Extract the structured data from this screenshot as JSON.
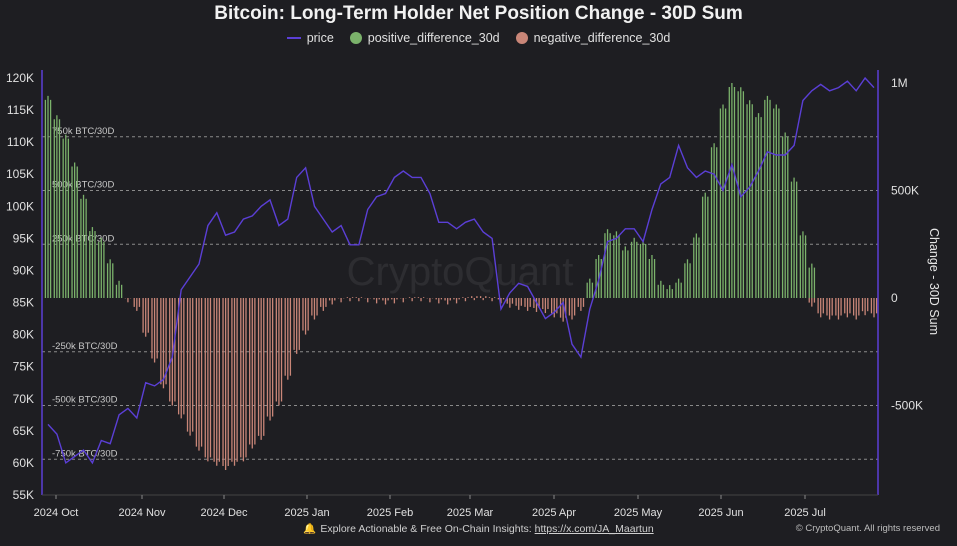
{
  "title": "Bitcoin: Long-Term Holder Net Position Change - 30D Sum",
  "legend": [
    {
      "label": "price",
      "color": "#5b3fd6",
      "kind": "line"
    },
    {
      "label": "positive_difference_30d",
      "color": "#7bb26b",
      "kind": "dot"
    },
    {
      "label": "negative_difference_30d",
      "color": "#c98678",
      "kind": "dot"
    }
  ],
  "watermark": "CryptoQuant",
  "footer": {
    "text": "Explore Actionable & Free On-Chain Insights:",
    "link": "https://x.com/JA_Maartun",
    "credit": "© CryptoQuant. All rights reserved"
  },
  "chart_data": {
    "type": "bar",
    "title": "Bitcoin: Long-Term Holder Net Position Change - 30D Sum",
    "xlabel": "",
    "ylabel": "",
    "y2label": "Change - 30D Sum",
    "x_ticks": [
      "2024 Oct",
      "2024 Nov",
      "2024 Dec",
      "2025 Jan",
      "2025 Feb",
      "2025 Mar",
      "2025 Apr",
      "2025 May",
      "2025 Jun",
      "2025 Jul"
    ],
    "y_left_ticks": [
      "120K",
      "115K",
      "110K",
      "105K",
      "100K",
      "95K",
      "90K",
      "85K",
      "80K",
      "75K",
      "70K",
      "65K",
      "60K",
      "55K"
    ],
    "y_right_ticks": [
      "1M",
      "500K",
      "0",
      "-500K"
    ],
    "ylim_price": [
      55000,
      121000
    ],
    "ylim_change": [
      -1000000,
      1000000
    ],
    "reference_lines": [
      {
        "label": "750k BTC/30D",
        "value": 750000
      },
      {
        "label": "500k BTC/30D",
        "value": 500000
      },
      {
        "label": "250k BTC/30D",
        "value": 250000
      },
      {
        "label": "-250k BTC/30D",
        "value": -250000
      },
      {
        "label": "-500k BTC/30D",
        "value": -500000
      },
      {
        "label": "-750k BTC/30D",
        "value": -750000
      }
    ],
    "series": [
      {
        "name": "price",
        "type": "line",
        "values": [
          66000,
          64500,
          60000,
          61000,
          62000,
          60000,
          63500,
          63000,
          67500,
          68500,
          67000,
          72500,
          72000,
          73000,
          76500,
          87000,
          89000,
          91000,
          97000,
          99000,
          95500,
          96000,
          98000,
          98500,
          100000,
          101000,
          97000,
          98000,
          104500,
          106000,
          100000,
          98000,
          96000,
          97000,
          94000,
          94000,
          99500,
          101500,
          102000,
          104500,
          105500,
          104500,
          104500,
          102000,
          97500,
          97500,
          96500,
          97500,
          98000,
          96000,
          95000,
          84000,
          86500,
          88000,
          87500,
          85000,
          82500,
          83500,
          85000,
          78500,
          76500,
          84000,
          88500,
          94500,
          95000,
          96500,
          96500,
          94500,
          99500,
          103500,
          104500,
          109500,
          106000,
          104500,
          105500,
          105000,
          102500,
          106500,
          101500,
          103000,
          105500,
          108500,
          108000,
          108000,
          109500,
          116500,
          118000,
          119000,
          118000,
          118500,
          119500,
          118000,
          120000,
          118500
        ]
      },
      {
        "name": "positive_difference_30d",
        "type": "bar",
        "values": [
          940000,
          850000,
          760000,
          630000,
          480000,
          330000,
          280000,
          180000,
          80000,
          0,
          0,
          0,
          0,
          0,
          0,
          0,
          0,
          0,
          0,
          0,
          0,
          0,
          0,
          0,
          0,
          0,
          0,
          0,
          0,
          0,
          0,
          0,
          0,
          0,
          0,
          0,
          0,
          0,
          0,
          0,
          0,
          0,
          0,
          0,
          0,
          0,
          0,
          0,
          0,
          0,
          0,
          0,
          0,
          0,
          0,
          0,
          0,
          0,
          0,
          0,
          0,
          90000,
          200000,
          320000,
          310000,
          240000,
          280000,
          270000,
          200000,
          80000,
          60000,
          90000,
          180000,
          300000,
          490000,
          720000,
          900000,
          1000000,
          980000,
          920000,
          860000,
          940000,
          900000,
          770000,
          560000,
          310000,
          160000,
          0,
          0,
          0,
          0,
          0,
          0,
          0
        ]
      },
      {
        "name": "negative_difference_30d",
        "type": "bar",
        "values": [
          0,
          0,
          0,
          0,
          0,
          0,
          0,
          0,
          0,
          -20000,
          -60000,
          -180000,
          -300000,
          -420000,
          -500000,
          -560000,
          -640000,
          -710000,
          -760000,
          -780000,
          -800000,
          -780000,
          -760000,
          -700000,
          -660000,
          -570000,
          -500000,
          -380000,
          -260000,
          -170000,
          -100000,
          -60000,
          -30000,
          -20000,
          -15000,
          -15000,
          -20000,
          -25000,
          -30000,
          -25000,
          -20000,
          -15000,
          -15000,
          -20000,
          -25000,
          -30000,
          -25000,
          -15000,
          -10000,
          -10000,
          -15000,
          -25000,
          -45000,
          -55000,
          -60000,
          -65000,
          -70000,
          -90000,
          -110000,
          -100000,
          -60000,
          0,
          0,
          0,
          0,
          0,
          0,
          0,
          0,
          0,
          0,
          0,
          0,
          0,
          0,
          0,
          0,
          0,
          0,
          0,
          0,
          0,
          0,
          0,
          0,
          0,
          -40000,
          -90000,
          -100000,
          -100000,
          -90000,
          -100000,
          -80000,
          -90000
        ]
      }
    ]
  }
}
